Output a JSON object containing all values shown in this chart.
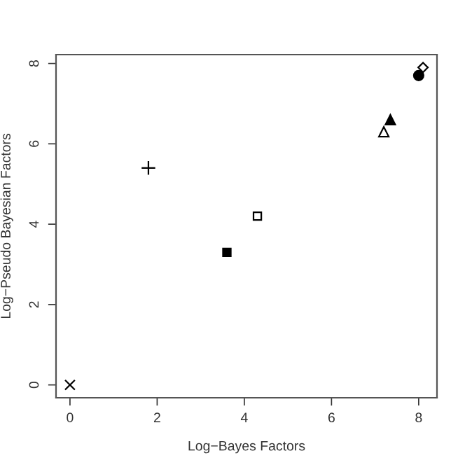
{
  "chart_data": {
    "type": "scatter",
    "xlabel": "Log−Bayes Factors",
    "ylabel": "Log−Pseudo Bayesian Factors",
    "xlim": [
      -0.32,
      8.42
    ],
    "ylim": [
      -0.32,
      8.22
    ],
    "xticks": [
      0,
      2,
      4,
      6,
      8
    ],
    "yticks": [
      0,
      2,
      4,
      6,
      8
    ],
    "grid": false,
    "legend": false,
    "series": [
      {
        "color": "#000000",
        "marker": "cross",
        "x": [
          0
        ],
        "values": [
          0
        ]
      },
      {
        "color": "#000000",
        "marker": "plus",
        "x": [
          1.8
        ],
        "values": [
          5.4
        ]
      },
      {
        "color": "#000000",
        "marker": "square",
        "x": [
          3.6
        ],
        "values": [
          3.3
        ]
      },
      {
        "color": "#000000",
        "marker": "square-open",
        "x": [
          4.3
        ],
        "values": [
          4.2
        ]
      },
      {
        "color": "#000000",
        "marker": "triangle-open",
        "x": [
          7.2
        ],
        "values": [
          6.3
        ]
      },
      {
        "color": "#000000",
        "marker": "triangle",
        "x": [
          7.35
        ],
        "values": [
          6.6
        ]
      },
      {
        "color": "#000000",
        "marker": "circle",
        "x": [
          8.0
        ],
        "values": [
          7.7
        ]
      },
      {
        "color": "#000000",
        "marker": "diamond-open",
        "x": [
          8.1
        ],
        "values": [
          7.9
        ]
      }
    ]
  }
}
